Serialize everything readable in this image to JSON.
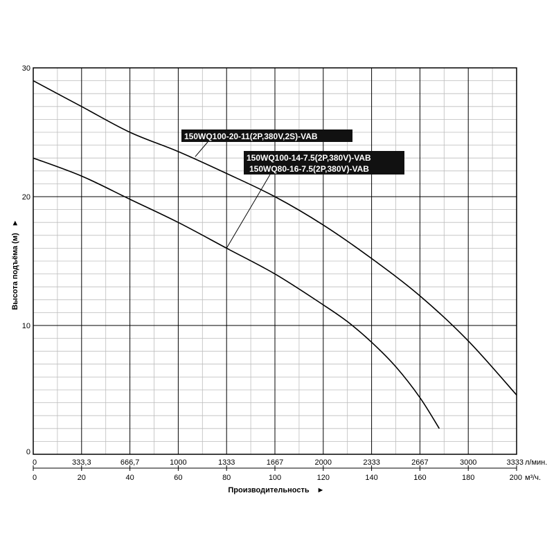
{
  "chart_data": {
    "type": "line",
    "xlabel": "Производительность",
    "ylabel": "Высота подъёма (м)",
    "x_unit": "м³/ч.",
    "secondary_x_unit": "л/мин.",
    "xlim": [
      0,
      200
    ],
    "ylim": [
      0,
      30
    ],
    "x_ticks": [
      "0",
      "20",
      "40",
      "60",
      "80",
      "100",
      "120",
      "140",
      "160",
      "180",
      "200"
    ],
    "secondary_x_ticks": [
      "0",
      "333,3",
      "666,7",
      "1000",
      "1333",
      "1667",
      "2000",
      "2333",
      "2667",
      "3000",
      "3333"
    ],
    "y_ticks": [
      "0",
      "10",
      "20",
      "30"
    ],
    "grid": true,
    "series": [
      {
        "name": "150WQ100-20-11(2P,380V,2S)-VAB",
        "x": [
          0,
          20,
          40,
          60,
          80,
          100,
          120,
          140,
          160,
          180,
          200
        ],
        "y": [
          29.0,
          27.0,
          25.0,
          23.5,
          21.8,
          20.0,
          17.8,
          15.2,
          12.3,
          8.8,
          4.6
        ]
      },
      {
        "name": "150WQ100-14-7.5(2P,380V)-VAB",
        "name2": "150WQ80-16-7.5(2P,380V)-VAB",
        "x": [
          0,
          20,
          40,
          60,
          80,
          100,
          120,
          130,
          140,
          150,
          160,
          168
        ],
        "y": [
          23.0,
          21.6,
          19.8,
          18.0,
          16.0,
          14.0,
          11.6,
          10.3,
          8.7,
          6.8,
          4.4,
          2.0
        ]
      }
    ]
  }
}
